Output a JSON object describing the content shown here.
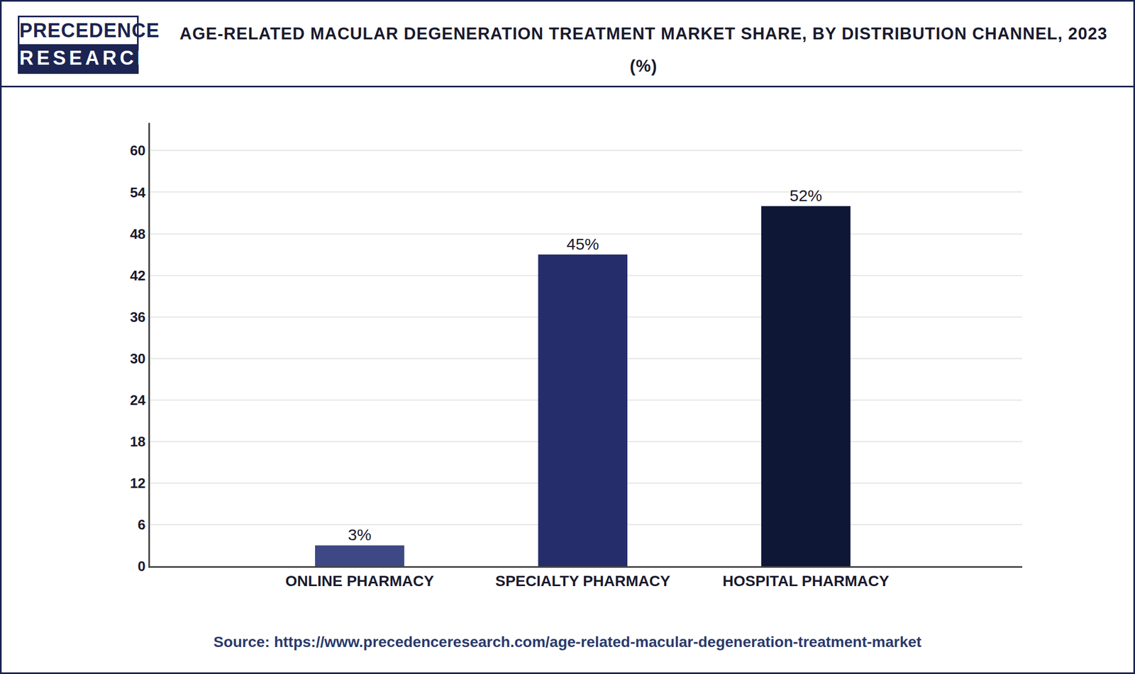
{
  "logo": [
    "PRECEDENCE",
    "RESEARCH"
  ],
  "chart_data": {
    "type": "bar",
    "title": "AGE-RELATED MACULAR DEGENERATION TREATMENT MARKET SHARE, BY DISTRIBUTION CHANNEL, 2023 (%)",
    "categories": [
      "ONLINE PHARMACY",
      "SPECIALTY PHARMACY",
      "HOSPITAL PHARMACY"
    ],
    "values": [
      3,
      45,
      52
    ],
    "value_labels": [
      "3%",
      "45%",
      "52%"
    ],
    "colors": [
      "#3d4885",
      "#252e6a",
      "#0f1737"
    ],
    "ylim": [
      0,
      64
    ],
    "yticks": [
      0,
      6,
      12,
      18,
      24,
      30,
      36,
      42,
      48,
      54,
      60
    ],
    "grid": true,
    "data_labels": true
  },
  "source": "Source: https://www.precedenceresearch.com/age-related-macular-degeneration-treatment-market"
}
